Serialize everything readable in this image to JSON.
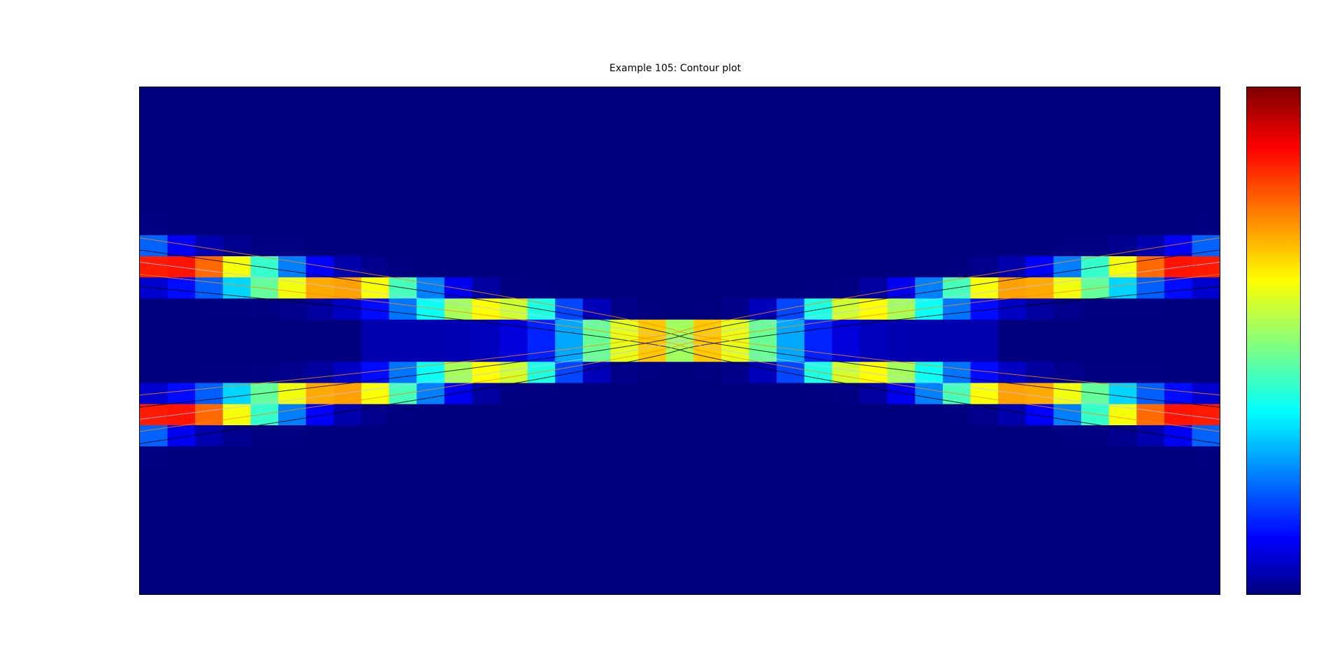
{
  "chart_data": {
    "type": "heatmap",
    "title": "Example 105: Contour plot",
    "xlabel": "",
    "ylabel": "",
    "grid": false,
    "colormap": "jet",
    "colormap_stops": [
      "#00007f",
      "#0000ff",
      "#00ffff",
      "#ffff00",
      "#ff0000",
      "#7f0000"
    ],
    "overlay": "contour lines",
    "colorbar": "right",
    "description": "two crossing bands (X shape) meeting at center, peaks at edges and center"
  }
}
